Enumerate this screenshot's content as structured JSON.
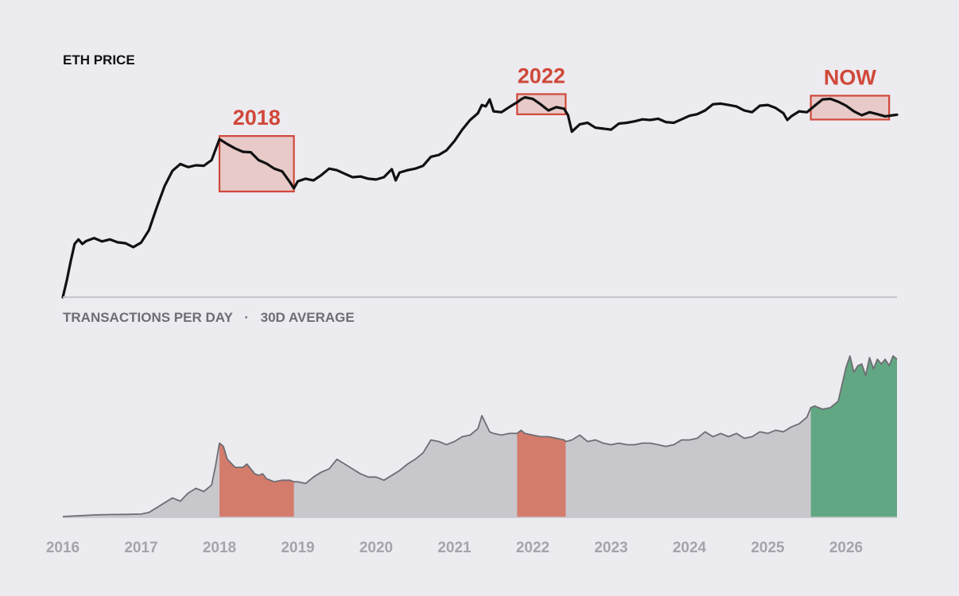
{
  "colors": {
    "background": "#ecebf0",
    "price_line": "#111111",
    "annotation": "#d0483a",
    "annotation_fill": "#e8c4c2",
    "tx_line": "#6d6d73",
    "tx_fill": "#c8c7cc",
    "tx_highlight_red": "#d47c6c",
    "tx_highlight_green": "#62a783",
    "divider": "#c6c5cb",
    "year_label": "#a5a4aa",
    "title_dark": "#111111",
    "title_gray": "#6e6d76"
  },
  "chart_data": [
    {
      "type": "line",
      "title": "ETH PRICE",
      "y_scale": "log",
      "y_axis_labels_shown": false,
      "grid": false,
      "x_range": [
        2016.0,
        2026.65
      ],
      "y_range": [
        1,
        10000
      ],
      "series": [
        {
          "x": [
            2016.0,
            2016.05,
            2016.1,
            2016.15,
            2016.2,
            2016.25,
            2016.3,
            2016.4,
            2016.5,
            2016.6,
            2016.7,
            2016.8,
            2016.9,
            2017.0,
            2017.1,
            2017.2,
            2017.3,
            2017.4,
            2017.5,
            2017.6,
            2017.7,
            2017.8,
            2017.9,
            2018.0,
            2018.1,
            2018.2,
            2018.3,
            2018.4,
            2018.5,
            2018.6,
            2018.7,
            2018.8,
            2018.9,
            2018.95,
            2019.0,
            2019.1,
            2019.2,
            2019.3,
            2019.4,
            2019.5,
            2019.6,
            2019.7,
            2019.8,
            2019.9,
            2020.0,
            2020.1,
            2020.2,
            2020.25,
            2020.3,
            2020.4,
            2020.5,
            2020.6,
            2020.7,
            2020.8,
            2020.9,
            2021.0,
            2021.1,
            2021.2,
            2021.3,
            2021.35,
            2021.4,
            2021.45,
            2021.5,
            2021.6,
            2021.7,
            2021.8,
            2021.85,
            2021.9,
            2022.0,
            2022.1,
            2022.2,
            2022.3,
            2022.4,
            2022.45,
            2022.5,
            2022.6,
            2022.7,
            2022.8,
            2022.9,
            2023.0,
            2023.1,
            2023.2,
            2023.3,
            2023.4,
            2023.5,
            2023.6,
            2023.7,
            2023.8,
            2023.9,
            2024.0,
            2024.1,
            2024.2,
            2024.3,
            2024.4,
            2024.5,
            2024.6,
            2024.7,
            2024.8,
            2024.9,
            2025.0,
            2025.1,
            2025.2,
            2025.25,
            2025.3,
            2025.4,
            2025.5,
            2025.6,
            2025.7,
            2025.8,
            2025.9,
            2026.0,
            2026.1,
            2026.2,
            2026.3,
            2026.4,
            2026.5,
            2026.6,
            2026.65
          ],
          "y": [
            1.0,
            2.0,
            4.5,
            9.5,
            11.5,
            9.5,
            10.8,
            12.2,
            10.6,
            11.5,
            10.2,
            9.8,
            8.3,
            10.1,
            17.0,
            45.0,
            110,
            210,
            280,
            245,
            265,
            260,
            330,
            800,
            650,
            540,
            470,
            460,
            330,
            285,
            230,
            205,
            130,
            100,
            135,
            150,
            140,
            175,
            230,
            215,
            185,
            160,
            165,
            150,
            145,
            160,
            225,
            140,
            195,
            215,
            230,
            260,
            380,
            410,
            500,
            740,
            1200,
            1800,
            2400,
            3400,
            3200,
            4300,
            2600,
            2500,
            3100,
            3800,
            4300,
            4700,
            4400,
            3500,
            2700,
            3100,
            2900,
            2200,
            1100,
            1500,
            1600,
            1300,
            1250,
            1200,
            1550,
            1600,
            1700,
            1850,
            1800,
            1900,
            1650,
            1600,
            1850,
            2150,
            2300,
            2700,
            3500,
            3600,
            3400,
            3200,
            2700,
            2500,
            3300,
            3400,
            3000,
            2400,
            1800,
            2100,
            2600,
            2500,
            3300,
            4300,
            4400,
            3900,
            3300,
            2600,
            2200,
            2500,
            2300,
            2100,
            2200,
            2250
          ]
        }
      ],
      "annotations": [
        {
          "label": "2018",
          "x_start": 2018.0,
          "x_end": 2018.95
        },
        {
          "label": "2022",
          "x_start": 2021.8,
          "x_end": 2022.42
        },
        {
          "label": "NOW",
          "x_start": 2025.55,
          "x_end": 2026.55
        }
      ]
    },
    {
      "type": "area",
      "title": "TRANSACTIONS PER DAY",
      "subtitle": "30D AVERAGE",
      "separator": "·",
      "y_axis_labels_shown": false,
      "grid": false,
      "x_range": [
        2016.0,
        2026.65
      ],
      "y_range": [
        0,
        1.0
      ],
      "x_ticks": [
        "2016",
        "2017",
        "2018",
        "2019",
        "2020",
        "2021",
        "2022",
        "2023",
        "2024",
        "2025",
        "2026"
      ],
      "series": [
        {
          "x": [
            2016.0,
            2016.2,
            2016.4,
            2016.6,
            2016.8,
            2017.0,
            2017.1,
            2017.2,
            2017.3,
            2017.4,
            2017.5,
            2017.6,
            2017.7,
            2017.8,
            2017.9,
            2017.95,
            2018.0,
            2018.05,
            2018.1,
            2018.2,
            2018.3,
            2018.35,
            2018.4,
            2018.45,
            2018.5,
            2018.55,
            2018.6,
            2018.7,
            2018.8,
            2018.9,
            2018.95,
            2019.0,
            2019.1,
            2019.2,
            2019.3,
            2019.4,
            2019.5,
            2019.6,
            2019.7,
            2019.8,
            2019.9,
            2020.0,
            2020.1,
            2020.2,
            2020.3,
            2020.4,
            2020.5,
            2020.6,
            2020.7,
            2020.8,
            2020.9,
            2021.0,
            2021.1,
            2021.2,
            2021.3,
            2021.35,
            2021.4,
            2021.45,
            2021.5,
            2021.6,
            2021.7,
            2021.8,
            2021.85,
            2021.9,
            2022.0,
            2022.1,
            2022.2,
            2022.3,
            2022.4,
            2022.42,
            2022.5,
            2022.6,
            2022.7,
            2022.8,
            2022.9,
            2023.0,
            2023.1,
            2023.2,
            2023.3,
            2023.4,
            2023.5,
            2023.6,
            2023.7,
            2023.8,
            2023.9,
            2024.0,
            2024.1,
            2024.2,
            2024.3,
            2024.4,
            2024.5,
            2024.6,
            2024.7,
            2024.8,
            2024.9,
            2025.0,
            2025.1,
            2025.2,
            2025.3,
            2025.4,
            2025.5,
            2025.55,
            2025.6,
            2025.7,
            2025.8,
            2025.9,
            2026.0,
            2026.05,
            2026.1,
            2026.15,
            2026.2,
            2026.25,
            2026.3,
            2026.35,
            2026.4,
            2026.45,
            2026.5,
            2026.55,
            2026.6,
            2026.65
          ],
          "y": [
            0.005,
            0.01,
            0.015,
            0.017,
            0.018,
            0.02,
            0.03,
            0.06,
            0.09,
            0.12,
            0.1,
            0.15,
            0.18,
            0.16,
            0.2,
            0.32,
            0.46,
            0.44,
            0.36,
            0.31,
            0.31,
            0.33,
            0.3,
            0.27,
            0.26,
            0.27,
            0.24,
            0.22,
            0.23,
            0.23,
            0.22,
            0.22,
            0.21,
            0.25,
            0.28,
            0.3,
            0.36,
            0.33,
            0.3,
            0.27,
            0.25,
            0.25,
            0.23,
            0.26,
            0.29,
            0.33,
            0.36,
            0.4,
            0.48,
            0.47,
            0.45,
            0.47,
            0.5,
            0.51,
            0.55,
            0.63,
            0.58,
            0.53,
            0.52,
            0.51,
            0.52,
            0.52,
            0.54,
            0.52,
            0.51,
            0.5,
            0.5,
            0.49,
            0.48,
            0.47,
            0.48,
            0.51,
            0.47,
            0.48,
            0.46,
            0.45,
            0.46,
            0.45,
            0.45,
            0.46,
            0.46,
            0.45,
            0.44,
            0.45,
            0.48,
            0.48,
            0.49,
            0.53,
            0.5,
            0.52,
            0.5,
            0.52,
            0.49,
            0.5,
            0.53,
            0.52,
            0.54,
            0.53,
            0.56,
            0.58,
            0.62,
            0.68,
            0.69,
            0.67,
            0.68,
            0.72,
            0.93,
            1.0,
            0.9,
            0.94,
            0.95,
            0.88,
            0.99,
            0.92,
            0.98,
            0.95,
            0.98,
            0.94,
            1.0,
            0.98
          ],
          "highlights": [
            {
              "x_start": 2018.0,
              "x_end": 2018.95,
              "color": "red"
            },
            {
              "x_start": 2021.8,
              "x_end": 2022.42,
              "color": "red"
            },
            {
              "x_start": 2025.55,
              "x_end": 2026.65,
              "color": "green"
            }
          ]
        }
      ]
    }
  ]
}
